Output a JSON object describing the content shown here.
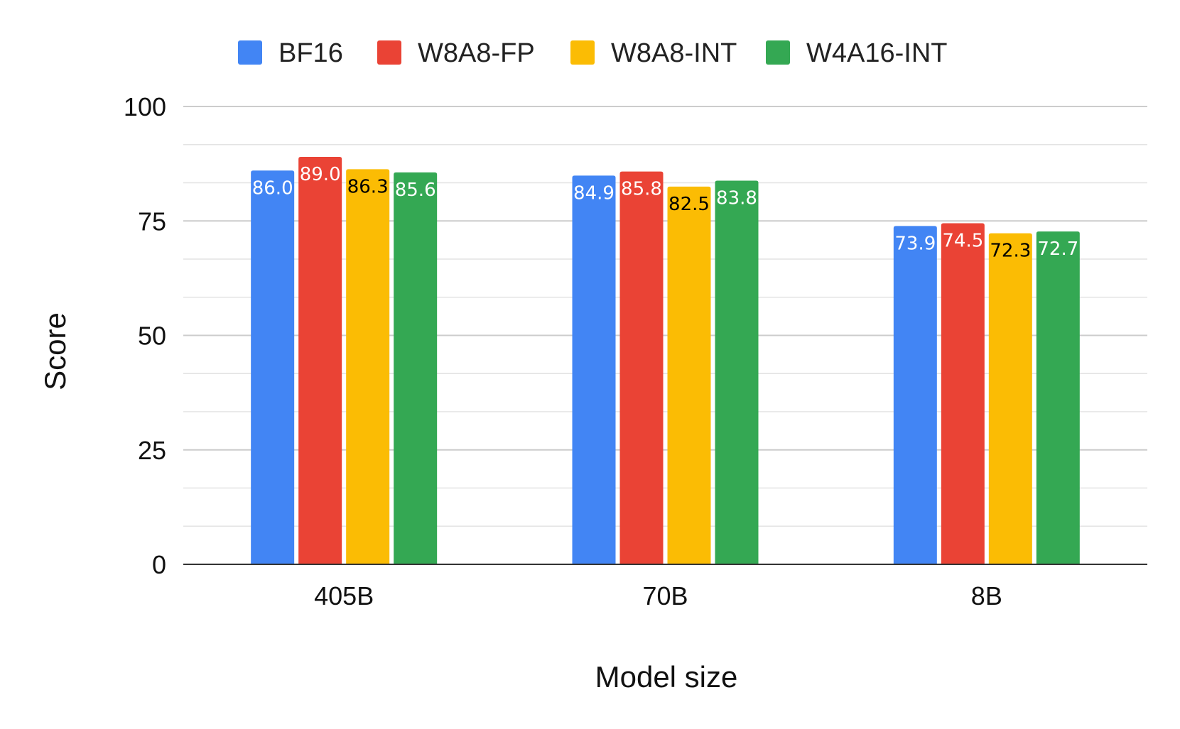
{
  "chart_data": {
    "type": "bar",
    "categories": [
      "405B",
      "70B",
      "8B"
    ],
    "series": [
      {
        "name": "BF16",
        "color": "#4285F4",
        "label_color": "#ffffff",
        "values": [
          86.0,
          84.9,
          73.9
        ]
      },
      {
        "name": "W8A8-FP",
        "color": "#EA4335",
        "label_color": "#ffffff",
        "values": [
          89.0,
          85.8,
          74.5
        ]
      },
      {
        "name": "W8A8-INT",
        "color": "#FBBC04",
        "label_color": "#000000",
        "values": [
          86.3,
          82.5,
          72.3
        ]
      },
      {
        "name": "W4A16-INT",
        "color": "#34A853",
        "label_color": "#ffffff",
        "values": [
          85.6,
          83.8,
          72.7
        ]
      }
    ],
    "xlabel": "Model size",
    "ylabel": "Score",
    "ylim": [
      0,
      100
    ],
    "yticks": [
      0,
      25,
      50,
      75,
      100
    ],
    "minor_gridlines": true,
    "legend_position": "top",
    "data_labels": true
  }
}
